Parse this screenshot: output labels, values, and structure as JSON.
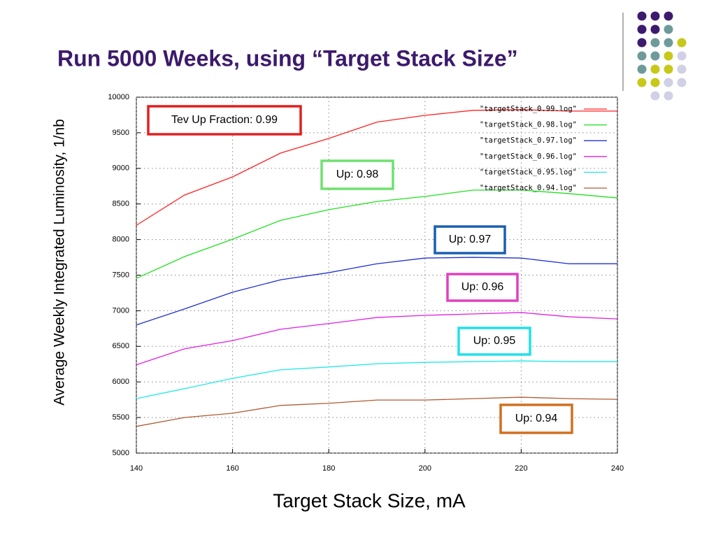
{
  "chart_data": {
    "type": "line",
    "title": "Run 5000 Weeks, using “Target Stack Size”",
    "x_label": "Target Stack Size, mA",
    "y_label": "Average Weekly Integrated Luminosity, 1/nb",
    "x": [
      140,
      150,
      160,
      170,
      180,
      190,
      200,
      210,
      220,
      230,
      240
    ],
    "xlim": [
      140,
      240
    ],
    "xticks": [
      140,
      160,
      180,
      200,
      220,
      240
    ],
    "ylim": [
      5000,
      10000
    ],
    "yticks": [
      5000,
      5500,
      6000,
      6500,
      7000,
      7500,
      8000,
      8500,
      9000,
      9500,
      10000
    ],
    "grid": true,
    "legend": "top-right",
    "series": [
      {
        "name": "\"targetStack_0.99.log\"",
        "color": "#ff2020",
        "values": [
          8200,
          8625,
          8880,
          9215,
          9420,
          9650,
          9745,
          9815,
          9825,
          9805,
          9805
        ]
      },
      {
        "name": "\"targetStack_0.98.log\"",
        "color": "#20e020",
        "values": [
          7455,
          7760,
          8005,
          8270,
          8420,
          8535,
          8605,
          8695,
          8695,
          8645,
          8585
        ]
      },
      {
        "name": "\"targetStack_0.97.log\"",
        "color": "#2030d0",
        "values": [
          6800,
          7025,
          7260,
          7435,
          7535,
          7660,
          7740,
          7750,
          7740,
          7660,
          7660
        ]
      },
      {
        "name": "\"targetStack_0.96.log\"",
        "color": "#e020e0",
        "values": [
          6240,
          6465,
          6580,
          6740,
          6820,
          6905,
          6935,
          6955,
          6975,
          6915,
          6885
        ]
      },
      {
        "name": "\"targetStack_0.95.log\"",
        "color": "#20e8e8",
        "values": [
          5765,
          5905,
          6050,
          6170,
          6210,
          6255,
          6275,
          6285,
          6295,
          6285,
          6285
        ]
      },
      {
        "name": "\"targetStack_0.94.log\"",
        "color": "#b05a30",
        "values": [
          5375,
          5500,
          5560,
          5670,
          5700,
          5745,
          5745,
          5765,
          5785,
          5765,
          5755
        ]
      }
    ],
    "annotations": [
      {
        "text": "Tev Up Fraction: 0.99",
        "color": "#e02020"
      },
      {
        "text": "Up: 0.98",
        "color": "#70e070"
      },
      {
        "text": "Up: 0.97",
        "color": "#1a5fb0"
      },
      {
        "text": "Up: 0.96",
        "color": "#e040c0"
      },
      {
        "text": "Up: 0.95",
        "color": "#20e0e8"
      },
      {
        "text": "Up: 0.94",
        "color": "#d07020"
      }
    ]
  }
}
